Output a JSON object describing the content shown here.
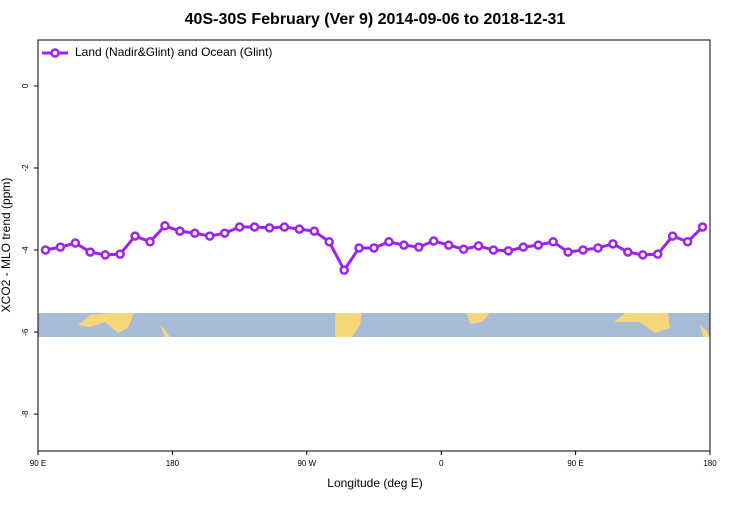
{
  "chart_data": {
    "type": "line",
    "title": "40S-30S February (Ver 9)   2014-09-06 to 2018-12-31",
    "xlabel": "Longitude (deg E)",
    "ylabel": "XCO2 - MLO trend (ppm)",
    "x": [
      95,
      105,
      115,
      125,
      135,
      145,
      155,
      165,
      175,
      185,
      195,
      205,
      215,
      225,
      235,
      245,
      255,
      265,
      275,
      285,
      295,
      305,
      315,
      325,
      335,
      345,
      355,
      365,
      375,
      385,
      395,
      405,
      415,
      425,
      435,
      445,
      455,
      465,
      475,
      485,
      495,
      505,
      515,
      525,
      535
    ],
    "series": [
      {
        "name": "Land (Nadir&Glint) and Ocean (Glint)",
        "color": "#a020f0",
        "values": [
          -4.0,
          -3.93,
          -3.83,
          -4.05,
          -4.12,
          -4.1,
          -3.66,
          -3.8,
          -3.41,
          -3.54,
          -3.59,
          -3.66,
          -3.59,
          -3.44,
          -3.44,
          -3.46,
          -3.44,
          -3.49,
          -3.54,
          -3.8,
          -4.49,
          -3.95,
          -3.95,
          -3.8,
          -3.88,
          -3.93,
          -3.78,
          -3.88,
          -3.98,
          -3.9,
          -4.0,
          -4.02,
          -3.93,
          -3.88,
          -3.8,
          -4.05,
          -4.0,
          -3.95,
          -3.85,
          -4.05,
          -4.12,
          -4.1,
          -3.66,
          -3.8,
          -3.44
        ]
      }
    ],
    "xlim": [
      90,
      540
    ],
    "xticks": [
      {
        "value": 90,
        "label": "90 E"
      },
      180,
      {
        "value": 270,
        "label": "90 W"
      },
      {
        "value": 360,
        "label": "0"
      },
      {
        "value": 450,
        "label": "90 E"
      },
      {
        "value": 540,
        "label": "180"
      }
    ],
    "ylim": [
      -8.9,
      1.12
    ],
    "yticks": [
      0,
      -2,
      -4,
      -6,
      -8
    ],
    "legend": "top-left"
  }
}
